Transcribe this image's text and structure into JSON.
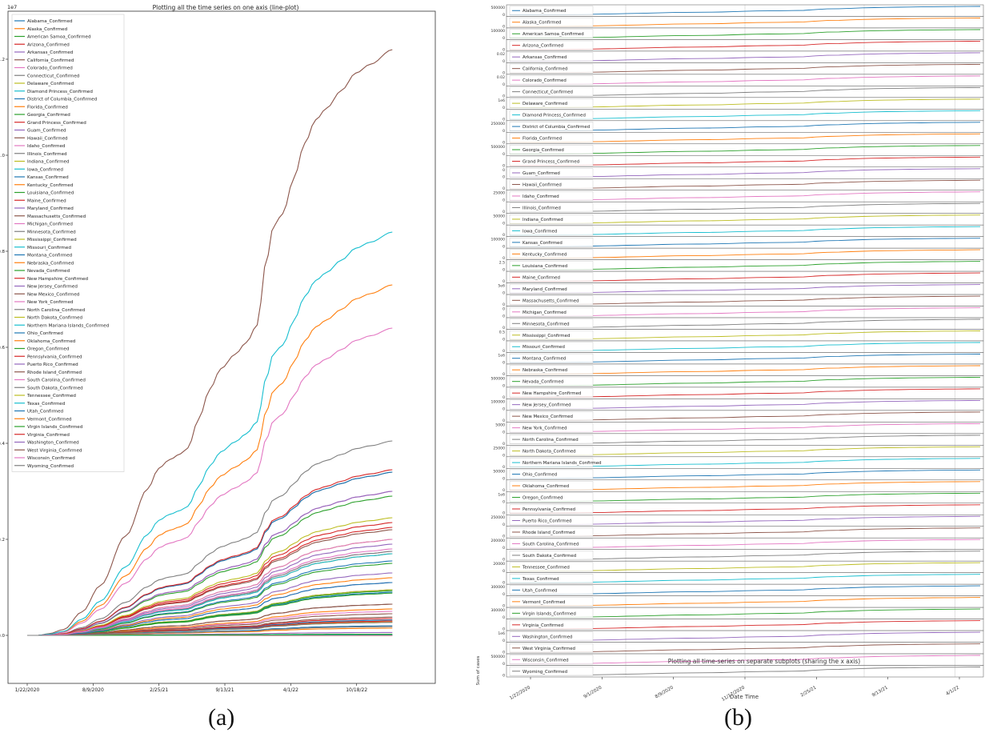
{
  "captions": {
    "a": "(a)",
    "b": "(b)"
  },
  "chart_data": [
    {
      "type": "line",
      "title": "Plotting all the time series on one axis (line-plot)",
      "y_scale_label": "1e7",
      "xlabel": "",
      "ylabel": "",
      "xlim": [
        0,
        1000
      ],
      "ylim": [
        -0.1,
        1.3
      ],
      "x_ticks": [
        {
          "pos": 0,
          "label": "1/22/2020"
        },
        {
          "pos": 166,
          "label": "8/9/2020"
        },
        {
          "pos": 332,
          "label": "2/25/21"
        },
        {
          "pos": 498,
          "label": "9/13/21"
        },
        {
          "pos": 664,
          "label": "4/1/22"
        },
        {
          "pos": 830,
          "label": "10/18/22"
        }
      ],
      "y_ticks": [
        {
          "pos": 0,
          "label": "0.0"
        },
        {
          "pos": 0.2,
          "label": "0.2"
        },
        {
          "pos": 0.4,
          "label": "0.4"
        },
        {
          "pos": 0.6,
          "label": "0.6"
        },
        {
          "pos": 0.8,
          "label": "0.8"
        },
        {
          "pos": 1.0,
          "label": "1.0"
        },
        {
          "pos": 1.2,
          "label": "1.2"
        }
      ],
      "legend_position": "upper-left",
      "series": [
        {
          "name": "Alabama_Confirmed",
          "final": 0.155,
          "color": "#1f77b4"
        },
        {
          "name": "Alaska_Confirmed",
          "final": 0.028,
          "color": "#ff7f0e"
        },
        {
          "name": "American Samoa_Confirmed",
          "final": 0.0008,
          "color": "#2ca02c"
        },
        {
          "name": "Arizona_Confirmed",
          "final": 0.235,
          "color": "#d62728"
        },
        {
          "name": "Arkansas_Confirmed",
          "final": 0.095,
          "color": "#9467bd"
        },
        {
          "name": "California_Confirmed",
          "final": 1.22,
          "color": "#8c564b"
        },
        {
          "name": "Colorado_Confirmed",
          "final": 0.175,
          "color": "#e377c2"
        },
        {
          "name": "Connecticut_Confirmed",
          "final": 0.095,
          "color": "#7f7f7f"
        },
        {
          "name": "Delaware_Confirmed",
          "final": 0.03,
          "color": "#bcbd22"
        },
        {
          "name": "Diamond Princess_Confirmed",
          "final": 0.0001,
          "color": "#17becf"
        },
        {
          "name": "District of Columbia_Confirmed",
          "final": 0.02,
          "color": "#1f77b4"
        },
        {
          "name": "Florida_Confirmed",
          "final": 0.73,
          "color": "#ff7f0e"
        },
        {
          "name": "Georgia_Confirmed",
          "final": 0.29,
          "color": "#2ca02c"
        },
        {
          "name": "Grand Princess_Confirmed",
          "final": 0.0001,
          "color": "#d62728"
        },
        {
          "name": "Guam_Confirmed",
          "final": 0.006,
          "color": "#9467bd"
        },
        {
          "name": "Hawaii_Confirmed",
          "final": 0.038,
          "color": "#8c564b"
        },
        {
          "name": "Idaho_Confirmed",
          "final": 0.05,
          "color": "#e377c2"
        },
        {
          "name": "Illinois_Confirmed",
          "final": 0.405,
          "color": "#7f7f7f"
        },
        {
          "name": "Indiana_Confirmed",
          "final": 0.2,
          "color": "#bcbd22"
        },
        {
          "name": "Iowa_Confirmed",
          "final": 0.09,
          "color": "#17becf"
        },
        {
          "name": "Kansas_Confirmed",
          "final": 0.09,
          "color": "#1f77b4"
        },
        {
          "name": "Kentucky_Confirmed",
          "final": 0.17,
          "color": "#ff7f0e"
        },
        {
          "name": "Louisiana_Confirmed",
          "final": 0.15,
          "color": "#2ca02c"
        },
        {
          "name": "Maine_Confirmed",
          "final": 0.03,
          "color": "#d62728"
        },
        {
          "name": "Maryland_Confirmed",
          "final": 0.13,
          "color": "#9467bd"
        },
        {
          "name": "Massachusetts_Confirmed",
          "final": 0.22,
          "color": "#8c564b"
        },
        {
          "name": "Michigan_Confirmed",
          "final": 0.3,
          "color": "#e377c2"
        },
        {
          "name": "Minnesota_Confirmed",
          "final": 0.175,
          "color": "#7f7f7f"
        },
        {
          "name": "Mississippi_Confirmed",
          "final": 0.095,
          "color": "#bcbd22"
        },
        {
          "name": "Missouri_Confirmed",
          "final": 0.17,
          "color": "#17becf"
        },
        {
          "name": "Montana_Confirmed",
          "final": 0.032,
          "color": "#1f77b4"
        },
        {
          "name": "Nebraska_Confirmed",
          "final": 0.055,
          "color": "#ff7f0e"
        },
        {
          "name": "Nevada_Confirmed",
          "final": 0.088,
          "color": "#2ca02c"
        },
        {
          "name": "New Hampshire_Confirmed",
          "final": 0.035,
          "color": "#d62728"
        },
        {
          "name": "New Jersey_Confirmed",
          "final": 0.3,
          "color": "#9467bd"
        },
        {
          "name": "New Mexico_Confirmed",
          "final": 0.065,
          "color": "#8c564b"
        },
        {
          "name": "New York_Confirmed",
          "final": 0.64,
          "color": "#e377c2"
        },
        {
          "name": "North Carolina_Confirmed",
          "final": 0.34,
          "color": "#7f7f7f"
        },
        {
          "name": "North Dakota_Confirmed",
          "final": 0.027,
          "color": "#bcbd22"
        },
        {
          "name": "Northern Mariana Islands_Confirmed",
          "final": 0.0013,
          "color": "#17becf"
        },
        {
          "name": "Ohio_Confirmed",
          "final": 0.34,
          "color": "#1f77b4"
        },
        {
          "name": "Oklahoma_Confirmed",
          "final": 0.12,
          "color": "#ff7f0e"
        },
        {
          "name": "Oregon_Confirmed",
          "final": 0.093,
          "color": "#2ca02c"
        },
        {
          "name": "Pennsylvania_Confirmed",
          "final": 0.345,
          "color": "#d62728"
        },
        {
          "name": "Puerto Rico_Confirmed",
          "final": 0.11,
          "color": "#9467bd"
        },
        {
          "name": "Rhode Island_Confirmed",
          "final": 0.045,
          "color": "#8c564b"
        },
        {
          "name": "South Carolina_Confirmed",
          "final": 0.18,
          "color": "#e377c2"
        },
        {
          "name": "South Dakota_Confirmed",
          "final": 0.027,
          "color": "#7f7f7f"
        },
        {
          "name": "Tennessee_Confirmed",
          "final": 0.245,
          "color": "#bcbd22"
        },
        {
          "name": "Texas_Confirmed",
          "final": 0.84,
          "color": "#17becf"
        },
        {
          "name": "Utah_Confirmed",
          "final": 0.11,
          "color": "#1f77b4"
        },
        {
          "name": "Vermont_Confirmed",
          "final": 0.015,
          "color": "#ff7f0e"
        },
        {
          "name": "Virgin Islands_Confirmed",
          "final": 0.0025,
          "color": "#2ca02c"
        },
        {
          "name": "Virginia_Confirmed",
          "final": 0.225,
          "color": "#d62728"
        },
        {
          "name": "Washington_Confirmed",
          "final": 0.19,
          "color": "#9467bd"
        },
        {
          "name": "West Virginia_Confirmed",
          "final": 0.065,
          "color": "#8c564b"
        },
        {
          "name": "Wisconsin_Confirmed",
          "final": 0.2,
          "color": "#e377c2"
        },
        {
          "name": "Wyoming_Confirmed",
          "final": 0.018,
          "color": "#7f7f7f"
        }
      ]
    },
    {
      "type": "line",
      "title": "Plotting all time-series on separate subplots (sharing the x axis)",
      "xlabel": "Date Time",
      "ylabel": "Sum of cases",
      "x_ticks": [
        "1/22/2020",
        "9/1/2020",
        "8/9/2020",
        "11/17/2020",
        "2/25/21",
        "9/13/21",
        "4/1/22"
      ],
      "subplot_ytick_labels": [
        "500000",
        "100000",
        "0.02",
        "0.02",
        "1e6",
        "250000",
        "500000",
        "0",
        "25000",
        "50000",
        "100000",
        "2.5",
        "5e6",
        "0",
        "0.5",
        "1e6",
        "500000",
        "100000",
        "5000",
        "25000",
        "50000",
        "1e6",
        "250000",
        "200000",
        "20000",
        "300000",
        "300000",
        "1e6",
        "500000",
        "1e6",
        "1e7",
        "1",
        "1e6"
      ],
      "legend_position": "left",
      "series_source": 0
    }
  ]
}
